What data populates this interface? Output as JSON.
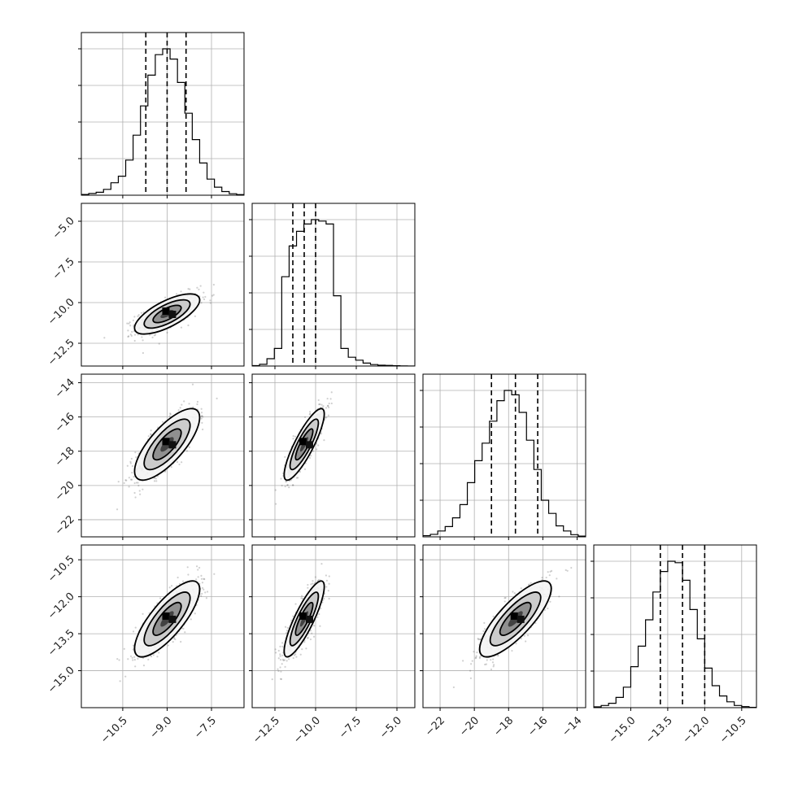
{
  "chart_data": {
    "type": "corner",
    "grid": true,
    "params": [
      {
        "range": [
          -11.9,
          -6.4
        ],
        "ticks": [
          -10.5,
          -9.0,
          -7.5
        ],
        "tick_labels": [
          "−10.5",
          "−9.0",
          "−7.5"
        ],
        "quantiles": [
          -9.72,
          -9.0,
          -8.36
        ]
      },
      {
        "range": [
          -13.9,
          -3.9
        ],
        "ticks": [
          -12.5,
          -10.0,
          -7.5,
          -5.0
        ],
        "tick_labels": [
          "−12.5",
          "−10.0",
          "−7.5",
          "−5.0"
        ],
        "quantiles": [
          -11.4,
          -10.7,
          -10.0
        ]
      },
      {
        "range": [
          -23.0,
          -13.5
        ],
        "ticks": [
          -22,
          -20,
          -18,
          -16,
          -14
        ],
        "tick_labels": [
          "−22",
          "−20",
          "−18",
          "−16",
          "−14"
        ],
        "quantiles": [
          -19.0,
          -17.6,
          -16.3
        ]
      },
      {
        "range": [
          -16.5,
          -9.9
        ],
        "ticks": [
          -15.0,
          -13.5,
          -12.0,
          -10.5
        ],
        "tick_labels": [
          "−15.0",
          "−13.5",
          "−12.0",
          "−10.5"
        ],
        "quantiles": [
          -13.8,
          -12.9,
          -12.0
        ]
      }
    ],
    "histograms": [
      [
        0.005,
        0.012,
        0.02,
        0.04,
        0.085,
        0.13,
        0.24,
        0.41,
        0.61,
        0.82,
        0.96,
        1.0,
        0.93,
        0.77,
        0.56,
        0.38,
        0.22,
        0.11,
        0.055,
        0.025,
        0.01,
        0.004
      ],
      [
        0.003,
        0.012,
        0.05,
        0.12,
        0.61,
        0.82,
        0.92,
        0.97,
        1.0,
        0.99,
        0.97,
        0.48,
        0.12,
        0.06,
        0.04,
        0.02,
        0.01,
        0.006,
        0.004,
        0.002,
        0.001,
        0.0
      ],
      [
        0.008,
        0.017,
        0.04,
        0.07,
        0.13,
        0.22,
        0.37,
        0.52,
        0.64,
        0.79,
        0.93,
        1.0,
        0.97,
        0.85,
        0.66,
        0.46,
        0.25,
        0.16,
        0.075,
        0.04,
        0.015,
        0.005
      ],
      [
        0.006,
        0.015,
        0.03,
        0.07,
        0.14,
        0.28,
        0.42,
        0.6,
        0.79,
        0.93,
        1.0,
        0.99,
        0.87,
        0.67,
        0.47,
        0.27,
        0.15,
        0.08,
        0.04,
        0.015,
        0.007,
        0.002
      ]
    ],
    "correlations": {
      "1,0": 0.7,
      "2,0": 0.75,
      "2,1": 0.85,
      "3,0": 0.78,
      "3,1": 0.85,
      "3,2": 0.8
    },
    "stds": [
      0.5,
      0.56,
      0.95,
      0.7
    ],
    "modes": [
      -9.0,
      -10.7,
      -17.6,
      -12.9
    ]
  }
}
